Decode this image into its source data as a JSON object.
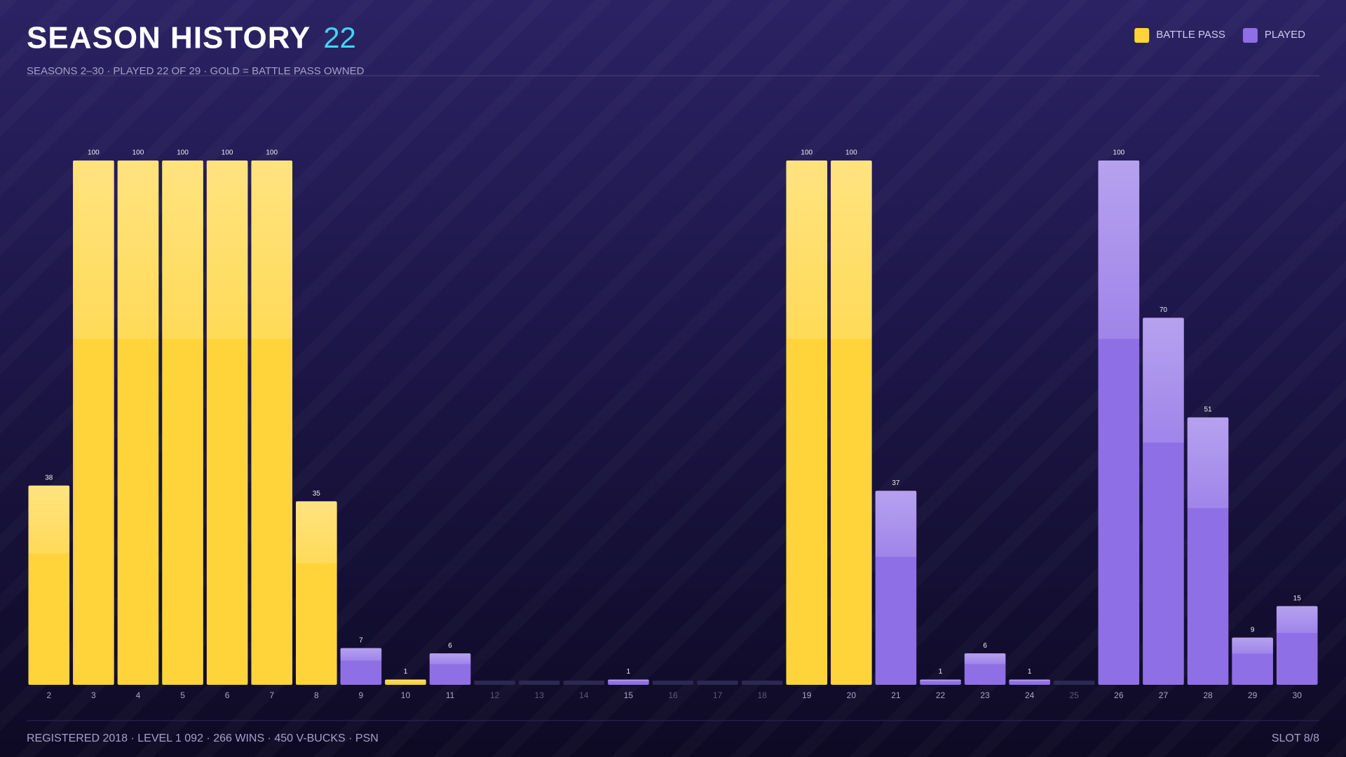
{
  "chart_data": {
    "type": "bar",
    "title": "SEASON HISTORY",
    "badge": "22",
    "subtitle": "SEASONS 2–30 · PLAYED 22 OF 29 · GOLD = BATTLE PASS OWNED",
    "categories": [
      "2",
      "3",
      "4",
      "5",
      "6",
      "7",
      "8",
      "9",
      "10",
      "11",
      "12",
      "13",
      "14",
      "15",
      "16",
      "17",
      "18",
      "19",
      "20",
      "21",
      "22",
      "23",
      "24",
      "25",
      "26",
      "27",
      "28",
      "29",
      "30"
    ],
    "series": [
      {
        "name": "BATTLE PASS",
        "color": "#ffd43b",
        "values": [
          38,
          100,
          100,
          100,
          100,
          100,
          35,
          null,
          1,
          null,
          null,
          null,
          null,
          null,
          null,
          null,
          null,
          100,
          100,
          null,
          null,
          null,
          null,
          null,
          null,
          null,
          null,
          null,
          null
        ]
      },
      {
        "name": "PLAYED",
        "color": "#8f6fe6",
        "values": [
          null,
          null,
          null,
          null,
          null,
          null,
          null,
          7,
          null,
          6,
          null,
          null,
          null,
          1,
          null,
          null,
          null,
          null,
          null,
          37,
          1,
          6,
          1,
          null,
          100,
          70,
          51,
          9,
          15
        ]
      }
    ],
    "ylim": [
      0,
      100
    ],
    "legend": "top-right"
  },
  "footer": {
    "left": "REGISTERED 2018 · LEVEL 1 092 · 266 WINS · 450 V-BUCKS · PSN",
    "right": "SLOT 8/8"
  }
}
